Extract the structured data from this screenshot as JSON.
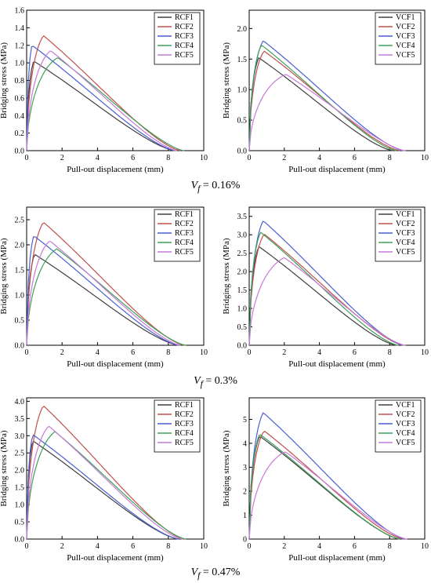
{
  "chart_data": [
    {
      "type": "line",
      "xlabel": "Pull-out displacement (mm)",
      "ylabel": "Bridging stress (MPa)",
      "xlim": [
        0,
        10
      ],
      "ylim": [
        0,
        1.6
      ],
      "xticks": [
        0,
        2,
        4,
        6,
        8,
        10
      ],
      "yticks": [
        0.0,
        0.2,
        0.4,
        0.6,
        0.8,
        1.0,
        1.2,
        1.4,
        1.6
      ],
      "tick_labels_y": [
        "0.0",
        "0.2",
        "0.4",
        "0.6",
        "0.8",
        "1.0",
        "1.2",
        "1.4",
        "1.6"
      ],
      "tick_labels_x": [
        "0",
        "2",
        "4",
        "6",
        "8",
        "10"
      ],
      "legend_position": "top-right",
      "grid": false,
      "series": [
        {
          "name": "RCF1",
          "color": "#404040",
          "peak_x": 0.4,
          "peak_y": 1.02,
          "end_x": 8.4
        },
        {
          "name": "RCF2",
          "color": "#c0504d",
          "peak_x": 0.95,
          "peak_y": 1.31,
          "end_x": 8.7
        },
        {
          "name": "RCF3",
          "color": "#4a5fd0",
          "peak_x": 0.3,
          "peak_y": 1.2,
          "end_x": 8.4
        },
        {
          "name": "RCF4",
          "color": "#3fa05a",
          "peak_x": 1.75,
          "peak_y": 1.06,
          "end_x": 8.9
        },
        {
          "name": "RCF5",
          "color": "#c77ad8",
          "peak_x": 1.35,
          "peak_y": 1.14,
          "end_x": 8.5
        }
      ]
    },
    {
      "type": "line",
      "xlabel": "Pull-out displacement (mm)",
      "ylabel": "Bridging stress (MPa)",
      "xlim": [
        0,
        10
      ],
      "ylim": [
        0,
        2.3
      ],
      "xticks": [
        0,
        2,
        4,
        6,
        8,
        10
      ],
      "yticks": [
        0.0,
        0.5,
        1.0,
        1.5,
        2.0
      ],
      "tick_labels_y": [
        "0.0",
        "0.5",
        "1.0",
        "1.5",
        "2.0"
      ],
      "tick_labels_x": [
        "0",
        "2",
        "4",
        "6",
        "8",
        "10"
      ],
      "legend_position": "top-right",
      "grid": false,
      "series": [
        {
          "name": "VCF1",
          "color": "#404040",
          "peak_x": 0.55,
          "peak_y": 1.52,
          "end_x": 8.2
        },
        {
          "name": "VCF2",
          "color": "#c0504d",
          "peak_x": 0.85,
          "peak_y": 1.63,
          "end_x": 8.6
        },
        {
          "name": "VCF3",
          "color": "#4a5fd0",
          "peak_x": 0.8,
          "peak_y": 1.8,
          "end_x": 8.8
        },
        {
          "name": "VCF4",
          "color": "#3fa05a",
          "peak_x": 0.7,
          "peak_y": 1.73,
          "end_x": 8.4
        },
        {
          "name": "VCF5",
          "color": "#c77ad8",
          "peak_x": 2.1,
          "peak_y": 1.25,
          "end_x": 8.9
        }
      ]
    },
    {
      "type": "line",
      "xlabel": "Pull-out displacement (mm)",
      "ylabel": "Bridging stress (MPa)",
      "xlim": [
        0,
        10
      ],
      "ylim": [
        0,
        2.75
      ],
      "xticks": [
        0,
        2,
        4,
        6,
        8,
        10
      ],
      "yticks": [
        0.0,
        0.5,
        1.0,
        1.5,
        2.0,
        2.5
      ],
      "tick_labels_y": [
        "0.0",
        "0.5",
        "1.0",
        "1.5",
        "2.0",
        "2.5"
      ],
      "tick_labels_x": [
        "0",
        "2",
        "4",
        "6",
        "8",
        "10"
      ],
      "legend_position": "top-right",
      "grid": false,
      "series": [
        {
          "name": "RCF1",
          "color": "#404040",
          "peak_x": 0.45,
          "peak_y": 1.81,
          "end_x": 8.6
        },
        {
          "name": "RCF2",
          "color": "#c0504d",
          "peak_x": 0.95,
          "peak_y": 2.45,
          "end_x": 8.9
        },
        {
          "name": "RCF3",
          "color": "#4a5fd0",
          "peak_x": 0.4,
          "peak_y": 2.18,
          "end_x": 8.6
        },
        {
          "name": "RCF4",
          "color": "#3fa05a",
          "peak_x": 1.7,
          "peak_y": 1.92,
          "end_x": 9.0
        },
        {
          "name": "RCF5",
          "color": "#c77ad8",
          "peak_x": 1.3,
          "peak_y": 2.08,
          "end_x": 8.7
        }
      ]
    },
    {
      "type": "line",
      "xlabel": "Pull-out displacement (mm)",
      "ylabel": "Bridging stress (MPa)",
      "xlim": [
        0,
        10
      ],
      "ylim": [
        0,
        3.75
      ],
      "xticks": [
        0,
        2,
        4,
        6,
        8,
        10
      ],
      "yticks": [
        0.0,
        0.5,
        1.0,
        1.5,
        2.0,
        2.5,
        3.0,
        3.5
      ],
      "tick_labels_y": [
        "0.0",
        "0.5",
        "1.0",
        "1.5",
        "2.0",
        "2.5",
        "3.0",
        "3.5"
      ],
      "tick_labels_x": [
        "0",
        "2",
        "4",
        "6",
        "8",
        "10"
      ],
      "legend_position": "top-right",
      "grid": false,
      "series": [
        {
          "name": "VCF1",
          "color": "#404040",
          "peak_x": 0.55,
          "peak_y": 2.68,
          "end_x": 8.4
        },
        {
          "name": "VCF2",
          "color": "#c0504d",
          "peak_x": 0.85,
          "peak_y": 3.02,
          "end_x": 8.8
        },
        {
          "name": "VCF3",
          "color": "#4a5fd0",
          "peak_x": 0.8,
          "peak_y": 3.38,
          "end_x": 8.8
        },
        {
          "name": "VCF4",
          "color": "#3fa05a",
          "peak_x": 0.65,
          "peak_y": 3.07,
          "end_x": 8.5
        },
        {
          "name": "VCF5",
          "color": "#c77ad8",
          "peak_x": 2.0,
          "peak_y": 2.38,
          "end_x": 8.9
        }
      ]
    },
    {
      "type": "line",
      "xlabel": "Pull-out displacement (mm)",
      "ylabel": "Bridging stress (MPa)",
      "xlim": [
        0,
        10
      ],
      "ylim": [
        0,
        4.1
      ],
      "xticks": [
        0,
        2,
        4,
        6,
        8,
        10
      ],
      "yticks": [
        0.0,
        0.5,
        1.0,
        1.5,
        2.0,
        2.5,
        3.0,
        3.5,
        4.0
      ],
      "tick_labels_y": [
        "0.0",
        "0.5",
        "1.0",
        "1.5",
        "2.0",
        "2.5",
        "3.0",
        "3.5",
        "4.0"
      ],
      "tick_labels_x": [
        "0",
        "2",
        "4",
        "6",
        "8",
        "10"
      ],
      "legend_position": "top-right",
      "grid": false,
      "series": [
        {
          "name": "RCF1",
          "color": "#404040",
          "peak_x": 0.35,
          "peak_y": 2.85,
          "end_x": 8.6
        },
        {
          "name": "RCF2",
          "color": "#c0504d",
          "peak_x": 0.95,
          "peak_y": 3.87,
          "end_x": 8.9
        },
        {
          "name": "RCF3",
          "color": "#4a5fd0",
          "peak_x": 0.35,
          "peak_y": 3.03,
          "end_x": 8.6
        },
        {
          "name": "RCF4",
          "color": "#3fa05a",
          "peak_x": 1.6,
          "peak_y": 3.12,
          "end_x": 9.0
        },
        {
          "name": "RCF5",
          "color": "#c77ad8",
          "peak_x": 1.25,
          "peak_y": 3.28,
          "end_x": 8.8
        }
      ]
    },
    {
      "type": "line",
      "xlabel": "Pull-out displacement (mm)",
      "ylabel": "Bridging stress (MPa)",
      "xlim": [
        0,
        10
      ],
      "ylim": [
        0,
        5.9
      ],
      "xticks": [
        0,
        2,
        4,
        6,
        8,
        10
      ],
      "yticks": [
        0,
        1,
        2,
        3,
        4,
        5
      ],
      "tick_labels_y": [
        "0",
        "1",
        "2",
        "3",
        "4",
        "5"
      ],
      "tick_labels_x": [
        "0",
        "2",
        "4",
        "6",
        "8",
        "10"
      ],
      "legend_position": "top-right",
      "grid": false,
      "series": [
        {
          "name": "VCF1",
          "color": "#404040",
          "peak_x": 0.6,
          "peak_y": 4.3,
          "end_x": 8.6
        },
        {
          "name": "VCF2",
          "color": "#c0504d",
          "peak_x": 0.85,
          "peak_y": 4.52,
          "end_x": 8.8
        },
        {
          "name": "VCF3",
          "color": "#4a5fd0",
          "peak_x": 0.8,
          "peak_y": 5.28,
          "end_x": 8.9
        },
        {
          "name": "VCF4",
          "color": "#3fa05a",
          "peak_x": 0.6,
          "peak_y": 4.38,
          "end_x": 8.6
        },
        {
          "name": "VCF5",
          "color": "#c77ad8",
          "peak_x": 2.05,
          "peak_y": 3.65,
          "end_x": 9.0
        }
      ]
    }
  ],
  "captions": {
    "row1": {
      "symbol": "V",
      "sub": "f",
      "rest": " = 0.16%"
    },
    "row2": {
      "symbol": "V",
      "sub": "f",
      "rest": " = 0.3%"
    },
    "row3": {
      "symbol": "V",
      "sub": "f",
      "rest": " = 0.47%"
    }
  }
}
